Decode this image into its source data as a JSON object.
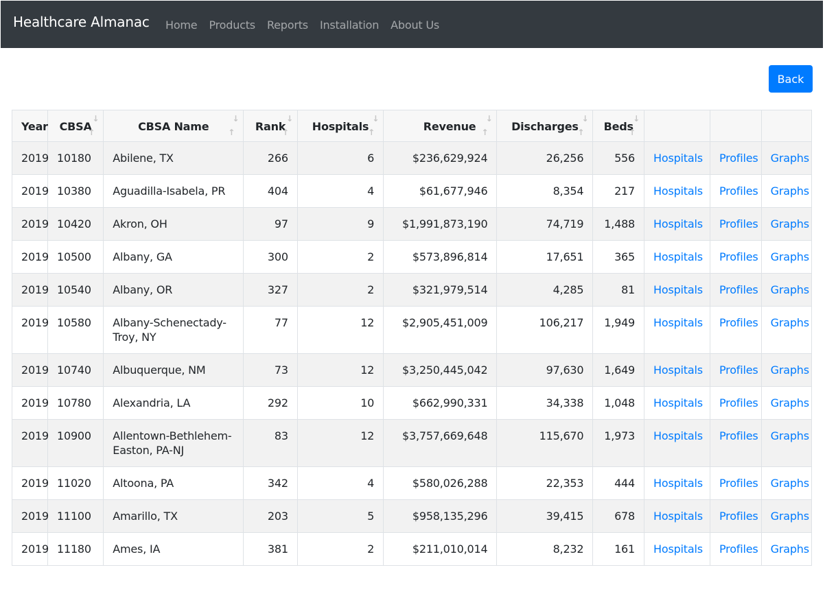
{
  "navbar": {
    "brand": "Healthcare Almanac",
    "links": [
      "Home",
      "Products",
      "Reports",
      "Installation",
      "About Us"
    ]
  },
  "back_label": "Back",
  "table": {
    "headers": [
      "Year",
      "CBSA",
      "CBSA Name",
      "Rank",
      "Hospitals",
      "Revenue",
      "Discharges",
      "Beds",
      "",
      "",
      ""
    ],
    "rows": [
      [
        "2019",
        "10180",
        "Abilene, TX",
        "266",
        "6",
        "$236,629,924",
        "26,256",
        "556",
        "Hospitals",
        "Profiles",
        "Graphs"
      ],
      [
        "2019",
        "10380",
        "Aguadilla-Isabela, PR",
        "404",
        "4",
        "$61,677,946",
        "8,354",
        "217",
        "Hospitals",
        "Profiles",
        "Graphs"
      ],
      [
        "2019",
        "10420",
        "Akron, OH",
        "97",
        "9",
        "$1,991,873,190",
        "74,719",
        "1,488",
        "Hospitals",
        "Profiles",
        "Graphs"
      ],
      [
        "2019",
        "10500",
        "Albany, GA",
        "300",
        "2",
        "$573,896,814",
        "17,651",
        "365",
        "Hospitals",
        "Profiles",
        "Graphs"
      ],
      [
        "2019",
        "10540",
        "Albany, OR",
        "327",
        "2",
        "$321,979,514",
        "4,285",
        "81",
        "Hospitals",
        "Profiles",
        "Graphs"
      ],
      [
        "2019",
        "10580",
        "Albany-Schenectady-Troy, NY",
        "77",
        "12",
        "$2,905,451,009",
        "106,217",
        "1,949",
        "Hospitals",
        "Profiles",
        "Graphs"
      ],
      [
        "2019",
        "10740",
        "Albuquerque, NM",
        "73",
        "12",
        "$3,250,445,042",
        "97,630",
        "1,649",
        "Hospitals",
        "Profiles",
        "Graphs"
      ],
      [
        "2019",
        "10780",
        "Alexandria, LA",
        "292",
        "10",
        "$662,990,331",
        "34,338",
        "1,048",
        "Hospitals",
        "Profiles",
        "Graphs"
      ],
      [
        "2019",
        "10900",
        "Allentown-Bethlehem-Easton, PA-NJ",
        "83",
        "12",
        "$3,757,669,648",
        "115,670",
        "1,973",
        "Hospitals",
        "Profiles",
        "Graphs"
      ],
      [
        "2019",
        "11020",
        "Altoona, PA",
        "342",
        "4",
        "$580,026,288",
        "22,353",
        "444",
        "Hospitals",
        "Profiles",
        "Graphs"
      ],
      [
        "2019",
        "11100",
        "Amarillo, TX",
        "203",
        "5",
        "$958,135,296",
        "39,415",
        "678",
        "Hospitals",
        "Profiles",
        "Graphs"
      ],
      [
        "2019",
        "11180",
        "Ames, IA",
        "381",
        "2",
        "$211,010,014",
        "8,232",
        "161",
        "Hospitals",
        "Profiles",
        "Graphs"
      ]
    ]
  },
  "colors": {
    "navbar_bg": "#343a40",
    "link": "#007bff",
    "button_bg": "#007bff",
    "stripe": "#f2f2f2"
  }
}
